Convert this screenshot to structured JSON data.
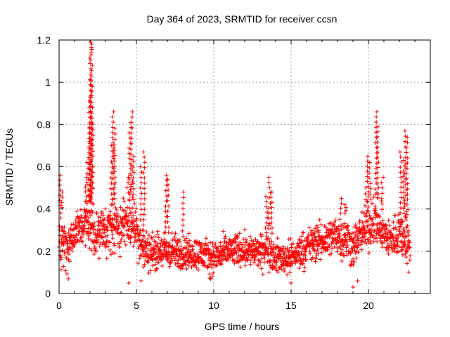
{
  "chart_data": {
    "type": "scatter",
    "title": "Day 364 of 2023, SRMTID for receiver ccsn",
    "xlabel": "GPS time / hours",
    "ylabel": "SRMTID / TECUs",
    "xlim": [
      0,
      24
    ],
    "ylim": [
      0,
      1.2
    ],
    "x_ticks": [
      0,
      5,
      10,
      15,
      20
    ],
    "x_tick_labels": [
      "0",
      "5",
      "10",
      "15",
      "20"
    ],
    "y_ticks": [
      0,
      0.2,
      0.4,
      0.6,
      0.8,
      1,
      1.2
    ],
    "y_tick_labels": [
      "0",
      "0.2",
      "0.4",
      "0.6",
      "0.8",
      "1",
      "1.2"
    ],
    "grid": true,
    "marker": "+",
    "color": "#ff0000",
    "x_range_of_data": [
      0,
      22.7
    ],
    "envelope": [
      {
        "x": 0.0,
        "center": 0.28,
        "spread": 0.12
      },
      {
        "x": 0.5,
        "center": 0.22,
        "spread": 0.12
      },
      {
        "x": 1.0,
        "center": 0.28,
        "spread": 0.1
      },
      {
        "x": 1.5,
        "center": 0.33,
        "spread": 0.1
      },
      {
        "x": 2.0,
        "center": 0.32,
        "spread": 0.12
      },
      {
        "x": 2.5,
        "center": 0.28,
        "spread": 0.1
      },
      {
        "x": 3.0,
        "center": 0.3,
        "spread": 0.12
      },
      {
        "x": 3.5,
        "center": 0.3,
        "spread": 0.12
      },
      {
        "x": 4.0,
        "center": 0.32,
        "spread": 0.12
      },
      {
        "x": 4.5,
        "center": 0.35,
        "spread": 0.13
      },
      {
        "x": 5.0,
        "center": 0.3,
        "spread": 0.12
      },
      {
        "x": 5.5,
        "center": 0.2,
        "spread": 0.1
      },
      {
        "x": 6.0,
        "center": 0.2,
        "spread": 0.09
      },
      {
        "x": 7.0,
        "center": 0.2,
        "spread": 0.09
      },
      {
        "x": 8.0,
        "center": 0.19,
        "spread": 0.08
      },
      {
        "x": 9.0,
        "center": 0.19,
        "spread": 0.08
      },
      {
        "x": 10.0,
        "center": 0.17,
        "spread": 0.08
      },
      {
        "x": 11.0,
        "center": 0.2,
        "spread": 0.08
      },
      {
        "x": 12.0,
        "center": 0.21,
        "spread": 0.08
      },
      {
        "x": 13.0,
        "center": 0.19,
        "spread": 0.08
      },
      {
        "x": 13.5,
        "center": 0.22,
        "spread": 0.1
      },
      {
        "x": 14.0,
        "center": 0.17,
        "spread": 0.08
      },
      {
        "x": 15.0,
        "center": 0.17,
        "spread": 0.08
      },
      {
        "x": 16.0,
        "center": 0.22,
        "spread": 0.09
      },
      {
        "x": 17.0,
        "center": 0.25,
        "spread": 0.09
      },
      {
        "x": 18.0,
        "center": 0.28,
        "spread": 0.1
      },
      {
        "x": 18.5,
        "center": 0.26,
        "spread": 0.12
      },
      {
        "x": 19.0,
        "center": 0.22,
        "spread": 0.1
      },
      {
        "x": 19.5,
        "center": 0.28,
        "spread": 0.1
      },
      {
        "x": 20.0,
        "center": 0.32,
        "spread": 0.12
      },
      {
        "x": 20.5,
        "center": 0.35,
        "spread": 0.12
      },
      {
        "x": 21.0,
        "center": 0.28,
        "spread": 0.1
      },
      {
        "x": 21.5,
        "center": 0.25,
        "spread": 0.1
      },
      {
        "x": 22.0,
        "center": 0.3,
        "spread": 0.12
      },
      {
        "x": 22.7,
        "center": 0.22,
        "spread": 0.1
      }
    ],
    "spikes": [
      {
        "x": 0.05,
        "peak": 0.56
      },
      {
        "x": 0.15,
        "peak": 0.48
      },
      {
        "x": 1.75,
        "peak": 0.55
      },
      {
        "x": 1.85,
        "peak": 0.62
      },
      {
        "x": 1.95,
        "peak": 0.72
      },
      {
        "x": 2.0,
        "peak": 0.93
      },
      {
        "x": 2.03,
        "peak": 1.01
      },
      {
        "x": 2.05,
        "peak": 1.19
      },
      {
        "x": 2.1,
        "peak": 1.18
      },
      {
        "x": 2.15,
        "peak": 0.8
      },
      {
        "x": 3.4,
        "peak": 0.7
      },
      {
        "x": 3.5,
        "peak": 0.86
      },
      {
        "x": 3.6,
        "peak": 0.78
      },
      {
        "x": 4.45,
        "peak": 0.55
      },
      {
        "x": 4.6,
        "peak": 0.81
      },
      {
        "x": 4.7,
        "peak": 0.86
      },
      {
        "x": 4.8,
        "peak": 0.65
      },
      {
        "x": 5.3,
        "peak": 0.6
      },
      {
        "x": 5.5,
        "peak": 0.67
      },
      {
        "x": 6.9,
        "peak": 0.56
      },
      {
        "x": 7.05,
        "peak": 0.54
      },
      {
        "x": 8.0,
        "peak": 0.48
      },
      {
        "x": 13.4,
        "peak": 0.46
      },
      {
        "x": 13.6,
        "peak": 0.55
      },
      {
        "x": 13.75,
        "peak": 0.48
      },
      {
        "x": 18.2,
        "peak": 0.45
      },
      {
        "x": 18.5,
        "peak": 0.42
      },
      {
        "x": 19.8,
        "peak": 0.5
      },
      {
        "x": 19.95,
        "peak": 0.65
      },
      {
        "x": 20.1,
        "peak": 0.62
      },
      {
        "x": 20.5,
        "peak": 0.86
      },
      {
        "x": 20.6,
        "peak": 0.79
      },
      {
        "x": 20.9,
        "peak": 0.55
      },
      {
        "x": 22.1,
        "peak": 0.67
      },
      {
        "x": 22.3,
        "peak": 0.63
      },
      {
        "x": 22.4,
        "peak": 0.77
      },
      {
        "x": 22.5,
        "peak": 0.74
      }
    ],
    "low_outliers": [
      {
        "x": 0.6,
        "y": 0.07
      },
      {
        "x": 4.5,
        "y": 0.05
      },
      {
        "x": 5.3,
        "y": 0.06
      },
      {
        "x": 9.8,
        "y": 0.07
      },
      {
        "x": 15.0,
        "y": 0.05
      },
      {
        "x": 19.0,
        "y": 0.03
      },
      {
        "x": 19.3,
        "y": 0.06
      },
      {
        "x": 22.6,
        "y": 0.1
      }
    ]
  }
}
